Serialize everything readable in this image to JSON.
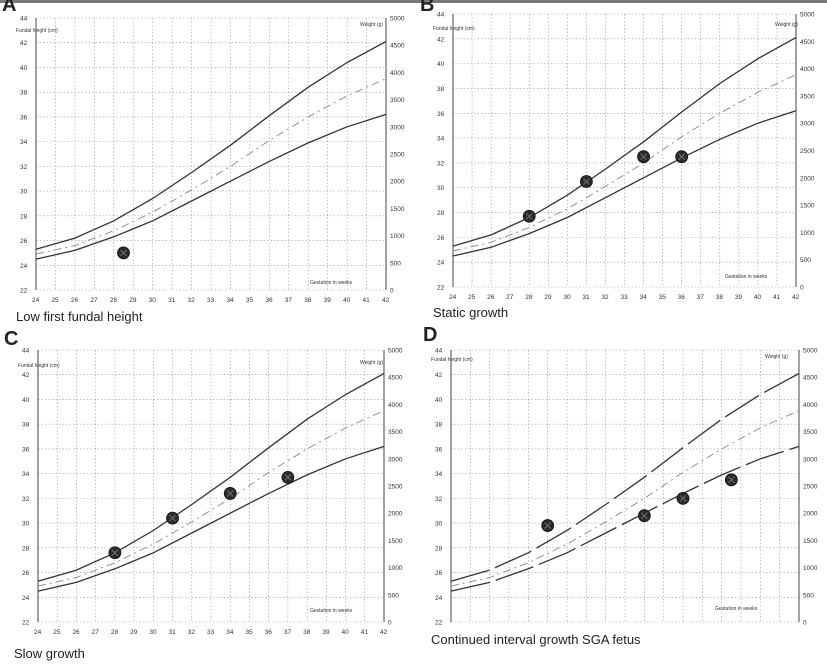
{
  "panels": [
    {
      "letter": "A",
      "caption": "Low first fundal height",
      "chart_data": {
        "type": "line",
        "ylabel": "Fundal height (cm)",
        "y2label": "Weight (g)",
        "xlabel": "Gestation in weeks",
        "xlim": [
          24,
          42
        ],
        "ylim": [
          22,
          44
        ],
        "y2lim": [
          0,
          5000
        ],
        "x_ticks": [
          "24",
          "25",
          "26",
          "27",
          "28",
          "29",
          "30",
          "31",
          "32",
          "33",
          "34",
          "35",
          "36",
          "37",
          "38",
          "39",
          "40",
          "41",
          "42"
        ],
        "y_ticks": [
          "22",
          "24",
          "26",
          "28",
          "30",
          "32",
          "34",
          "36",
          "38",
          "40",
          "42",
          "44"
        ],
        "y2_ticks": [
          "0",
          "500",
          "1000",
          "1500",
          "2000",
          "2500",
          "3000",
          "3500",
          "4000",
          "4500",
          "5000"
        ],
        "grid": true,
        "centiles": {
          "upper": [
            [
              24,
              25.3
            ],
            [
              26,
              26.2
            ],
            [
              28,
              27.6
            ],
            [
              30,
              29.4
            ],
            [
              32,
              31.5
            ],
            [
              34,
              33.7
            ],
            [
              36,
              36.1
            ],
            [
              38,
              38.4
            ],
            [
              40,
              40.4
            ],
            [
              42,
              42.1
            ]
          ],
          "middle": [
            [
              24,
              24.9
            ],
            [
              26,
              25.6
            ],
            [
              28,
              26.8
            ],
            [
              30,
              28.3
            ],
            [
              32,
              30.1
            ],
            [
              34,
              32.0
            ],
            [
              36,
              34.1
            ],
            [
              38,
              36.0
            ],
            [
              40,
              37.7
            ],
            [
              42,
              39.1
            ]
          ],
          "lower": [
            [
              24,
              24.5
            ],
            [
              26,
              25.2
            ],
            [
              28,
              26.3
            ],
            [
              30,
              27.6
            ],
            [
              32,
              29.2
            ],
            [
              34,
              30.8
            ],
            [
              36,
              32.4
            ],
            [
              38,
              33.9
            ],
            [
              40,
              35.2
            ],
            [
              42,
              36.2
            ]
          ]
        },
        "measurements": [
          [
            28.5,
            25.0
          ]
        ]
      }
    },
    {
      "letter": "B",
      "caption": "Static growth",
      "chart_data": {
        "type": "line",
        "ylabel": "Fundal height (cm)",
        "y2label": "Weight (g)",
        "xlabel": "Gestation in weeks",
        "xlim": [
          24,
          42
        ],
        "ylim": [
          22,
          44
        ],
        "y2lim": [
          0,
          5000
        ],
        "x_ticks": [
          "24",
          "25",
          "26",
          "27",
          "28",
          "29",
          "30",
          "31",
          "32",
          "33",
          "34",
          "35",
          "36",
          "37",
          "38",
          "39",
          "40",
          "41",
          "42"
        ],
        "y_ticks": [
          "22",
          "24",
          "26",
          "28",
          "30",
          "32",
          "34",
          "36",
          "38",
          "40",
          "42",
          "44"
        ],
        "y2_ticks": [
          "0",
          "500",
          "1000",
          "1500",
          "2000",
          "2500",
          "3000",
          "3500",
          "4000",
          "4500",
          "5000"
        ],
        "grid": true,
        "centiles": {
          "upper": [
            [
              24,
              25.3
            ],
            [
              26,
              26.2
            ],
            [
              28,
              27.6
            ],
            [
              30,
              29.4
            ],
            [
              32,
              31.5
            ],
            [
              34,
              33.7
            ],
            [
              36,
              36.1
            ],
            [
              38,
              38.4
            ],
            [
              40,
              40.4
            ],
            [
              42,
              42.1
            ]
          ],
          "middle": [
            [
              24,
              24.9
            ],
            [
              26,
              25.6
            ],
            [
              28,
              26.8
            ],
            [
              30,
              28.3
            ],
            [
              32,
              30.1
            ],
            [
              34,
              32.0
            ],
            [
              36,
              34.1
            ],
            [
              38,
              36.0
            ],
            [
              40,
              37.7
            ],
            [
              42,
              39.1
            ]
          ],
          "lower": [
            [
              24,
              24.5
            ],
            [
              26,
              25.2
            ],
            [
              28,
              26.3
            ],
            [
              30,
              27.6
            ],
            [
              32,
              29.2
            ],
            [
              34,
              30.8
            ],
            [
              36,
              32.4
            ],
            [
              38,
              33.9
            ],
            [
              40,
              35.2
            ],
            [
              42,
              36.2
            ]
          ]
        },
        "measurements": [
          [
            28,
            27.7
          ],
          [
            31,
            30.5
          ],
          [
            34,
            32.5
          ],
          [
            36,
            32.5
          ]
        ]
      }
    },
    {
      "letter": "C",
      "caption": "Slow growth",
      "chart_data": {
        "type": "line",
        "ylabel": "Fundal height (cm)",
        "y2label": "Weight (g)",
        "xlabel": "Gestation in weeks",
        "xlim": [
          24,
          42
        ],
        "ylim": [
          22,
          44
        ],
        "y2lim": [
          0,
          5000
        ],
        "x_ticks": [
          "24",
          "25",
          "26",
          "27",
          "28",
          "29",
          "30",
          "31",
          "32",
          "33",
          "34",
          "35",
          "36",
          "37",
          "38",
          "39",
          "40",
          "41",
          "42"
        ],
        "y_ticks": [
          "22",
          "24",
          "26",
          "28",
          "30",
          "32",
          "34",
          "36",
          "38",
          "40",
          "42",
          "44"
        ],
        "y2_ticks": [
          "0",
          "500",
          "1000",
          "1500",
          "2000",
          "2500",
          "3000",
          "3500",
          "4000",
          "4500",
          "5000"
        ],
        "grid": true,
        "centiles": {
          "upper": [
            [
              24,
              25.3
            ],
            [
              26,
              26.2
            ],
            [
              28,
              27.6
            ],
            [
              30,
              29.4
            ],
            [
              32,
              31.5
            ],
            [
              34,
              33.7
            ],
            [
              36,
              36.1
            ],
            [
              38,
              38.4
            ],
            [
              40,
              40.4
            ],
            [
              42,
              42.1
            ]
          ],
          "middle": [
            [
              24,
              24.9
            ],
            [
              26,
              25.6
            ],
            [
              28,
              26.8
            ],
            [
              30,
              28.3
            ],
            [
              32,
              30.1
            ],
            [
              34,
              32.0
            ],
            [
              36,
              34.1
            ],
            [
              38,
              36.0
            ],
            [
              40,
              37.7
            ],
            [
              42,
              39.1
            ]
          ],
          "lower": [
            [
              24,
              24.5
            ],
            [
              26,
              25.2
            ],
            [
              28,
              26.3
            ],
            [
              30,
              27.6
            ],
            [
              32,
              29.2
            ],
            [
              34,
              30.8
            ],
            [
              36,
              32.4
            ],
            [
              38,
              33.9
            ],
            [
              40,
              35.2
            ],
            [
              42,
              36.2
            ]
          ]
        },
        "measurements": [
          [
            28,
            27.6
          ],
          [
            31,
            30.4
          ],
          [
            34,
            32.4
          ],
          [
            37,
            33.7
          ]
        ]
      }
    },
    {
      "letter": "D",
      "caption": "Continued interval growth   SGA fetus",
      "chart_data": {
        "type": "line",
        "ylabel": "Fundal height (cm)",
        "y2label": "Weight (g)",
        "xlabel": "Gestation in weeks",
        "xlim": [
          24,
          42
        ],
        "ylim": [
          22,
          44
        ],
        "y2lim": [
          0,
          5000
        ],
        "x_ticks": [],
        "y_ticks": [
          "22",
          "24",
          "26",
          "28",
          "30",
          "32",
          "34",
          "36",
          "38",
          "40",
          "42",
          "44"
        ],
        "y2_ticks": [
          "0",
          "500",
          "1000",
          "1500",
          "2000",
          "2500",
          "3000",
          "3500",
          "4000",
          "4500",
          "5000"
        ],
        "grid": true,
        "centiles": {
          "upper": [
            [
              24,
              25.3
            ],
            [
              26,
              26.2
            ],
            [
              28,
              27.6
            ],
            [
              30,
              29.4
            ],
            [
              32,
              31.5
            ],
            [
              34,
              33.7
            ],
            [
              36,
              36.1
            ],
            [
              38,
              38.4
            ],
            [
              40,
              40.4
            ],
            [
              42,
              42.1
            ]
          ],
          "middle": [
            [
              24,
              24.9
            ],
            [
              26,
              25.6
            ],
            [
              28,
              26.8
            ],
            [
              30,
              28.3
            ],
            [
              32,
              30.1
            ],
            [
              34,
              32.0
            ],
            [
              36,
              34.1
            ],
            [
              38,
              36.0
            ],
            [
              40,
              37.7
            ],
            [
              42,
              39.1
            ]
          ],
          "lower": [
            [
              24,
              24.5
            ],
            [
              26,
              25.2
            ],
            [
              28,
              26.3
            ],
            [
              30,
              27.6
            ],
            [
              32,
              29.2
            ],
            [
              34,
              30.8
            ],
            [
              36,
              32.4
            ],
            [
              38,
              33.9
            ],
            [
              40,
              35.2
            ],
            [
              42,
              36.2
            ]
          ]
        },
        "measurements": [
          [
            29,
            29.8
          ],
          [
            34,
            30.6
          ],
          [
            36,
            32.0
          ],
          [
            38.5,
            33.5
          ]
        ]
      }
    }
  ]
}
